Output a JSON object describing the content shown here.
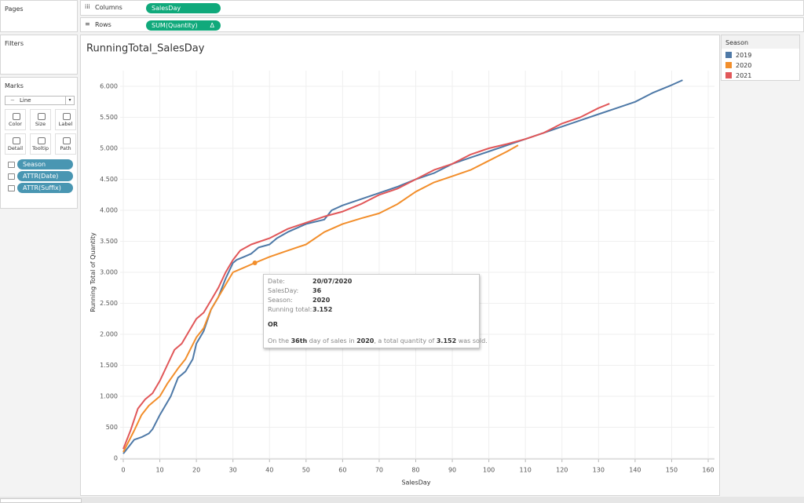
{
  "ui": {
    "pages_title": "Pages",
    "filters_title": "Filters",
    "marks_title": "Marks",
    "mark_type": "Line",
    "mark_buttons": [
      "Color",
      "Size",
      "Label",
      "Detail",
      "Tooltip",
      "Path"
    ],
    "mark_pills": [
      "Season",
      "ATTR(Date)",
      "ATTR(Suffix)"
    ],
    "columns_label": "Columns",
    "columns_pill": "SalesDay",
    "rows_label": "Rows",
    "rows_pill": "SUM(Quantity)",
    "rows_pill_icon": "Δ"
  },
  "tooltip": {
    "rows": [
      [
        "Date:",
        "20/07/2020"
      ],
      [
        "SalesDay:",
        "36"
      ],
      [
        "Season:",
        "2020"
      ],
      [
        "Running total:",
        "3.152"
      ]
    ],
    "or": "OR",
    "sentence": [
      "On the ",
      "36th",
      " day of sales in ",
      "2020",
      ", a total quantity of ",
      "3.152",
      " was sold."
    ]
  },
  "chart_data": {
    "type": "line",
    "title": "RunningTotal_SalesDay",
    "x_label": "SalesDay",
    "y_label": "Running Total of Quantity",
    "legend_title": "Season",
    "legend_position": "right",
    "grid": true,
    "xlim": [
      0,
      160
    ],
    "xticks": [
      0,
      10,
      20,
      30,
      40,
      50,
      60,
      70,
      80,
      90,
      100,
      110,
      120,
      130,
      140,
      150,
      160
    ],
    "ylim": [
      0,
      6000
    ],
    "yticks": [
      0,
      500,
      {
        "value": 1000,
        "label": "1.000"
      },
      {
        "value": 1500,
        "label": "1.500"
      },
      {
        "value": 2000,
        "label": "2.000"
      },
      {
        "value": 2500,
        "label": "2.500"
      },
      {
        "value": 3000,
        "label": "3.000"
      },
      {
        "value": 3500,
        "label": "3.500"
      },
      {
        "value": 4000,
        "label": "4.000"
      },
      {
        "value": 4500,
        "label": "4.500"
      },
      {
        "value": 5000,
        "label": "5.000"
      },
      {
        "value": 5500,
        "label": "5.500"
      },
      {
        "value": 6000,
        "label": "6.000"
      }
    ],
    "highlight": {
      "series": 1,
      "index": 15
    },
    "series": [
      {
        "name": "2019",
        "color": "#4e79a7",
        "x": [
          0,
          3,
          5,
          7,
          8,
          10,
          12,
          13,
          15,
          17,
          19,
          20,
          22,
          24,
          26,
          28,
          30,
          31,
          33,
          35,
          37,
          40,
          42,
          45,
          50,
          55,
          57,
          60,
          65,
          70,
          75,
          80,
          85,
          90,
          95,
          100,
          105,
          110,
          115,
          120,
          125,
          130,
          135,
          140,
          145,
          150,
          153
        ],
        "values": [
          75,
          300,
          340,
          400,
          470,
          700,
          900,
          1000,
          1300,
          1400,
          1600,
          1850,
          2050,
          2400,
          2600,
          2900,
          3150,
          3200,
          3250,
          3300,
          3400,
          3450,
          3550,
          3650,
          3780,
          3850,
          4000,
          4080,
          4180,
          4280,
          4380,
          4500,
          4600,
          4750,
          4850,
          4950,
          5050,
          5150,
          5250,
          5350,
          5450,
          5550,
          5650,
          5750,
          5900,
          6020,
          6100
        ]
      },
      {
        "name": "2020",
        "color": "#f28e2b",
        "x": [
          0,
          3,
          5,
          7,
          10,
          12,
          15,
          17,
          20,
          22,
          24,
          26,
          28,
          30,
          32,
          36,
          40,
          45,
          50,
          55,
          60,
          65,
          70,
          75,
          80,
          85,
          90,
          95,
          100,
          105,
          108
        ],
        "values": [
          100,
          450,
          700,
          850,
          1000,
          1200,
          1450,
          1600,
          1950,
          2100,
          2400,
          2600,
          2800,
          3000,
          3050,
          3152,
          3250,
          3350,
          3450,
          3650,
          3780,
          3870,
          3950,
          4100,
          4300,
          4450,
          4550,
          4650,
          4800,
          4950,
          5050
        ]
      },
      {
        "name": "2021",
        "color": "#e15759",
        "x": [
          0,
          2,
          4,
          6,
          8,
          10,
          12,
          14,
          16,
          18,
          20,
          22,
          24,
          26,
          28,
          30,
          32,
          35,
          40,
          45,
          50,
          55,
          60,
          65,
          70,
          75,
          80,
          85,
          90,
          95,
          100,
          105,
          110,
          115,
          120,
          125,
          130,
          133
        ],
        "values": [
          150,
          450,
          800,
          950,
          1050,
          1250,
          1500,
          1750,
          1850,
          2050,
          2250,
          2350,
          2550,
          2750,
          3000,
          3200,
          3350,
          3450,
          3550,
          3700,
          3800,
          3900,
          3980,
          4100,
          4250,
          4350,
          4500,
          4650,
          4750,
          4900,
          5000,
          5070,
          5150,
          5250,
          5400,
          5500,
          5650,
          5720
        ]
      }
    ]
  }
}
